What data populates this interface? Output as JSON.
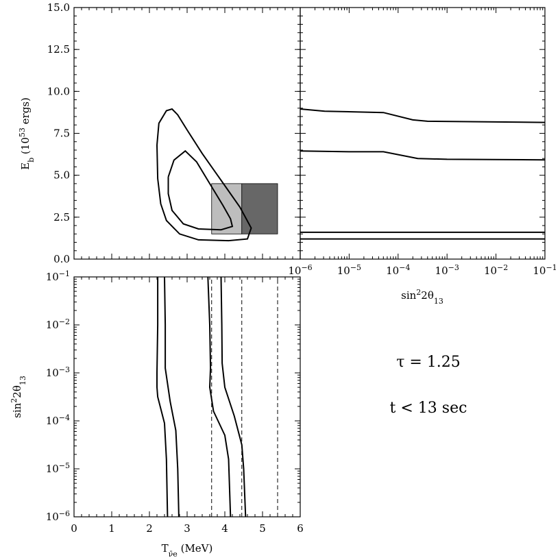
{
  "chart_data": [
    {
      "id": "top-left",
      "type": "line",
      "xlim": [
        0,
        6
      ],
      "ylim": [
        0,
        15
      ],
      "ylabel": "E_b (10^53 ergs)",
      "yticks": [
        "0.0",
        "2.5",
        "5.0",
        "7.5",
        "10.0",
        "12.5",
        "15.0"
      ],
      "ytick_values": [
        0,
        2.5,
        5,
        7.5,
        10,
        12.5,
        15
      ],
      "shaded_boxes": [
        {
          "x": [
            3.65,
            4.45
          ],
          "y": [
            1.5,
            4.5
          ],
          "color": "#bdbdbd"
        },
        {
          "x": [
            4.45,
            5.4
          ],
          "y": [
            1.5,
            4.5
          ],
          "color": "#676767"
        }
      ],
      "series": [
        {
          "values": [
            [
              2.2,
              6.8
            ],
            [
              2.25,
              8.1
            ],
            [
              2.45,
              8.85
            ],
            [
              2.6,
              8.95
            ],
            [
              2.75,
              8.6
            ],
            [
              3.0,
              7.7
            ],
            [
              3.4,
              6.3
            ],
            [
              3.9,
              4.7
            ],
            [
              4.4,
              3.1
            ],
            [
              4.7,
              1.85
            ],
            [
              4.6,
              1.2
            ],
            [
              4.1,
              1.1
            ],
            [
              3.3,
              1.15
            ],
            [
              2.8,
              1.5
            ],
            [
              2.45,
              2.3
            ],
            [
              2.3,
              3.3
            ],
            [
              2.22,
              4.8
            ],
            [
              2.2,
              6.8
            ]
          ]
        },
        {
          "values": [
            [
              2.5,
              4.9
            ],
            [
              2.65,
              5.9
            ],
            [
              2.95,
              6.45
            ],
            [
              3.25,
              5.8
            ],
            [
              3.6,
              4.5
            ],
            [
              3.95,
              3.2
            ],
            [
              4.15,
              2.4
            ],
            [
              4.2,
              1.95
            ],
            [
              3.9,
              1.75
            ],
            [
              3.3,
              1.8
            ],
            [
              2.9,
              2.1
            ],
            [
              2.6,
              2.9
            ],
            [
              2.5,
              3.9
            ],
            [
              2.5,
              4.9
            ]
          ]
        }
      ]
    },
    {
      "id": "top-right",
      "type": "line",
      "xscale": "log",
      "xlim": [
        1e-06,
        0.1
      ],
      "ylim": [
        0,
        15
      ],
      "xlabel": "sin^2 2θ_13",
      "xticks": [
        "10^-6",
        "10^-5",
        "10^-4",
        "10^-3",
        "10^-2",
        "10^-1"
      ],
      "xtick_exponents": [
        -6,
        -5,
        -4,
        -3,
        -2,
        -1
      ],
      "series": [
        {
          "values": [
            [
              -6,
              8.95
            ],
            [
              -5.5,
              8.82
            ],
            [
              -4.3,
              8.74
            ],
            [
              -3.7,
              8.3
            ],
            [
              -3.4,
              8.22
            ],
            [
              -2,
              8.18
            ],
            [
              -1,
              8.15
            ]
          ]
        },
        {
          "values": [
            [
              -6,
              6.45
            ],
            [
              -5,
              6.4
            ],
            [
              -4.3,
              6.4
            ],
            [
              -3.6,
              6.0
            ],
            [
              -3.0,
              5.95
            ],
            [
              -1,
              5.92
            ]
          ]
        },
        {
          "values": [
            [
              -6,
              1.6
            ],
            [
              -1,
              1.6
            ]
          ]
        },
        {
          "values": [
            [
              -6,
              1.2
            ],
            [
              -1,
              1.2
            ]
          ]
        }
      ]
    },
    {
      "id": "bottom-left",
      "type": "line",
      "xlim": [
        0,
        6
      ],
      "yscale": "log",
      "ylim": [
        1e-06,
        0.1
      ],
      "xlabel": "T_ν̄e (MeV)",
      "ylabel": "sin^2 2θ_13",
      "xticks": [
        "0",
        "1",
        "2",
        "3",
        "4",
        "5",
        "6"
      ],
      "xtick_values": [
        0,
        1,
        2,
        3,
        4,
        5,
        6
      ],
      "yticks": [
        "10^-6",
        "10^-5",
        "10^-4",
        "10^-3",
        "10^-2",
        "10^-1"
      ],
      "ytick_exponents": [
        -6,
        -5,
        -4,
        -3,
        -2,
        -1
      ],
      "dashed_lines": [
        3.65,
        4.45,
        5.4
      ],
      "series": [
        {
          "values": [
            [
              2.22,
              -1
            ],
            [
              2.22,
              -2
            ],
            [
              2.2,
              -3
            ],
            [
              2.2,
              -3.3
            ],
            [
              2.22,
              -3.5
            ],
            [
              2.4,
              -4.05
            ],
            [
              2.45,
              -4.8
            ],
            [
              2.48,
              -6
            ]
          ]
        },
        {
          "values": [
            [
              2.4,
              -1
            ],
            [
              2.42,
              -2
            ],
            [
              2.42,
              -2.9
            ],
            [
              2.55,
              -3.6
            ],
            [
              2.7,
              -4.2
            ],
            [
              2.75,
              -5
            ],
            [
              2.78,
              -6
            ]
          ]
        },
        {
          "values": [
            [
              3.55,
              -1
            ],
            [
              3.6,
              -2
            ],
            [
              3.62,
              -2.9
            ],
            [
              3.6,
              -3.3
            ],
            [
              3.7,
              -3.8
            ],
            [
              4.0,
              -4.3
            ],
            [
              4.1,
              -4.8
            ],
            [
              4.15,
              -6
            ]
          ]
        },
        {
          "values": [
            [
              3.9,
              -1
            ],
            [
              3.92,
              -2
            ],
            [
              3.93,
              -2.8
            ],
            [
              4.0,
              -3.3
            ],
            [
              4.25,
              -3.9
            ],
            [
              4.45,
              -4.5
            ],
            [
              4.5,
              -5
            ],
            [
              4.55,
              -6
            ]
          ]
        }
      ]
    }
  ],
  "annotations": {
    "tau": "τ = 1.25",
    "time": "t < 13 sec"
  }
}
